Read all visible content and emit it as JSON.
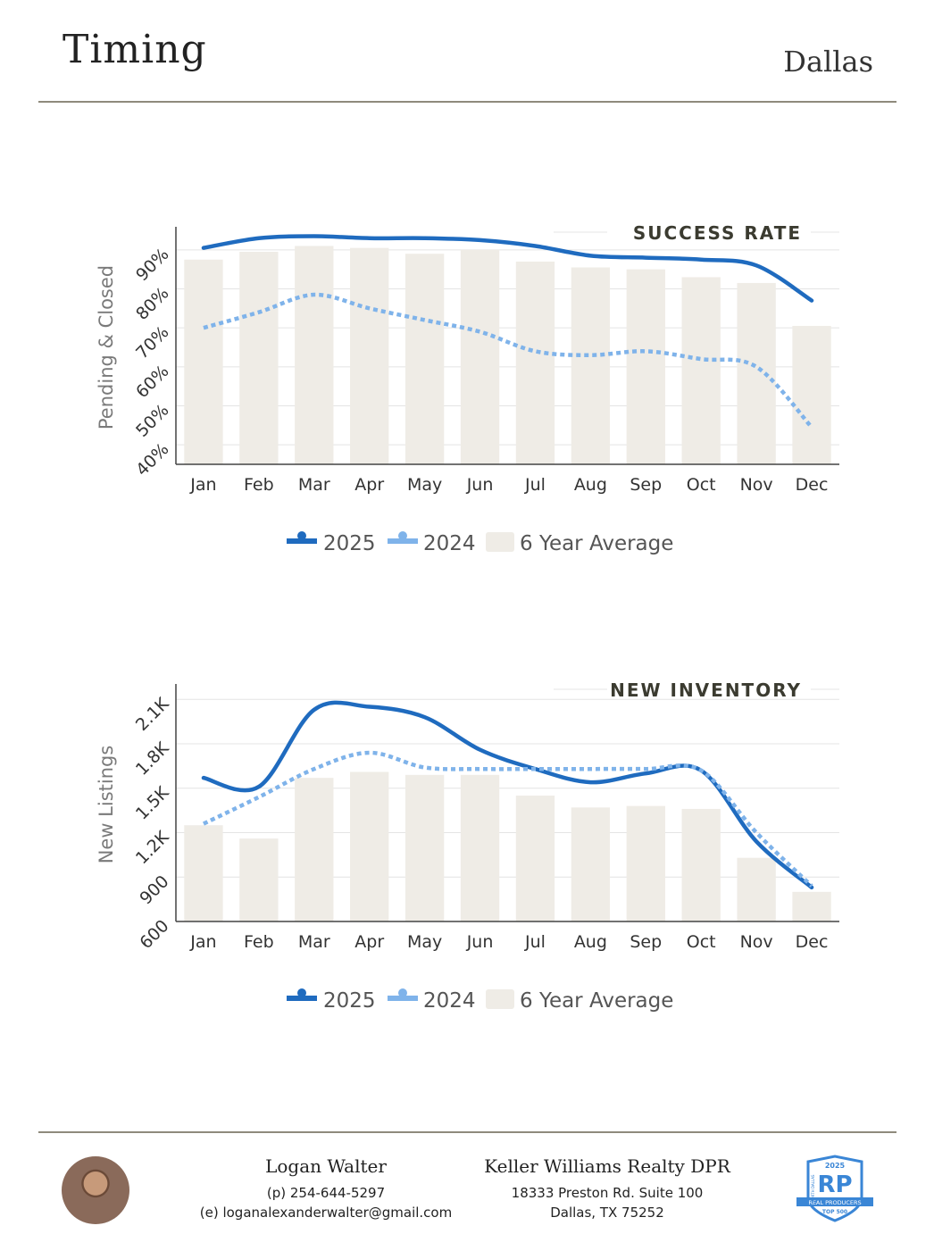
{
  "header": {
    "title": "Timing",
    "city": "Dallas"
  },
  "chart_data": [
    {
      "type": "bar",
      "title": "SUCCESS RATE",
      "ylabel": "Pending & Closed",
      "categories": [
        "Jan",
        "Feb",
        "Mar",
        "Apr",
        "May",
        "Jun",
        "Jul",
        "Aug",
        "Sep",
        "Oct",
        "Nov",
        "Dec"
      ],
      "yticks": [
        "40%",
        "50%",
        "60%",
        "70%",
        "80%",
        "90%"
      ],
      "ylim": [
        35,
        95
      ],
      "series": [
        {
          "name": "6 Year Average",
          "type": "bar",
          "color": "#efece6",
          "values": [
            87.5,
            89.5,
            91,
            90.5,
            89,
            90,
            87,
            85.5,
            85,
            83,
            81.5,
            70.5
          ]
        },
        {
          "name": "2025",
          "type": "line",
          "style": "solid",
          "color": "#1f6bbf",
          "values": [
            90.5,
            93,
            93.5,
            93,
            93,
            92.5,
            91,
            88.5,
            88,
            87.5,
            86,
            77
          ]
        },
        {
          "name": "2024",
          "type": "line",
          "style": "dotted",
          "color": "#7fb3ea",
          "values": [
            70,
            74,
            78.5,
            75,
            72,
            69,
            64,
            63,
            64,
            62,
            60,
            44.5
          ]
        }
      ],
      "legend": {
        "position": "bottom",
        "items": [
          "2025",
          "2024",
          "6 Year Average"
        ]
      }
    },
    {
      "type": "bar",
      "title": "NEW INVENTORY",
      "ylabel": "New Listings",
      "categories": [
        "Jan",
        "Feb",
        "Mar",
        "Apr",
        "May",
        "Jun",
        "Jul",
        "Aug",
        "Sep",
        "Oct",
        "Nov",
        "Dec"
      ],
      "yticks": [
        "600",
        "900",
        "1.2K",
        "1.5K",
        "1.8K",
        "2.1K"
      ],
      "ylim": [
        600,
        2180
      ],
      "series": [
        {
          "name": "6 Year Average",
          "type": "bar",
          "color": "#efece6",
          "values": [
            1250,
            1160,
            1570,
            1610,
            1590,
            1590,
            1450,
            1370,
            1380,
            1360,
            1030,
            800
          ]
        },
        {
          "name": "2025",
          "type": "line",
          "style": "solid",
          "color": "#1f6bbf",
          "values": [
            1570,
            1510,
            2030,
            2050,
            1980,
            1760,
            1630,
            1540,
            1600,
            1620,
            1140,
            830
          ]
        },
        {
          "name": "2024",
          "type": "line",
          "style": "dotted",
          "color": "#7fb3ea",
          "values": [
            1260,
            1440,
            1630,
            1740,
            1640,
            1630,
            1630,
            1630,
            1630,
            1620,
            1200,
            840
          ]
        }
      ],
      "legend": {
        "position": "bottom",
        "items": [
          "2025",
          "2024",
          "6 Year Average"
        ]
      }
    }
  ],
  "footer": {
    "agent_name": "Logan Walter",
    "phone": "(p) 254-644-5297",
    "email": "(e) loganalexanderwalter@gmail.com",
    "company": "Keller Williams Realty DPR",
    "address1": "18333 Preston Rd. Suite 100",
    "address2": "Dallas, TX 75252",
    "badge": {
      "year": "2025",
      "letters": "RP",
      "line1": "REAL PRODUCERS",
      "line2": "TOP 500",
      "side": "NORTH DALLAS"
    }
  }
}
